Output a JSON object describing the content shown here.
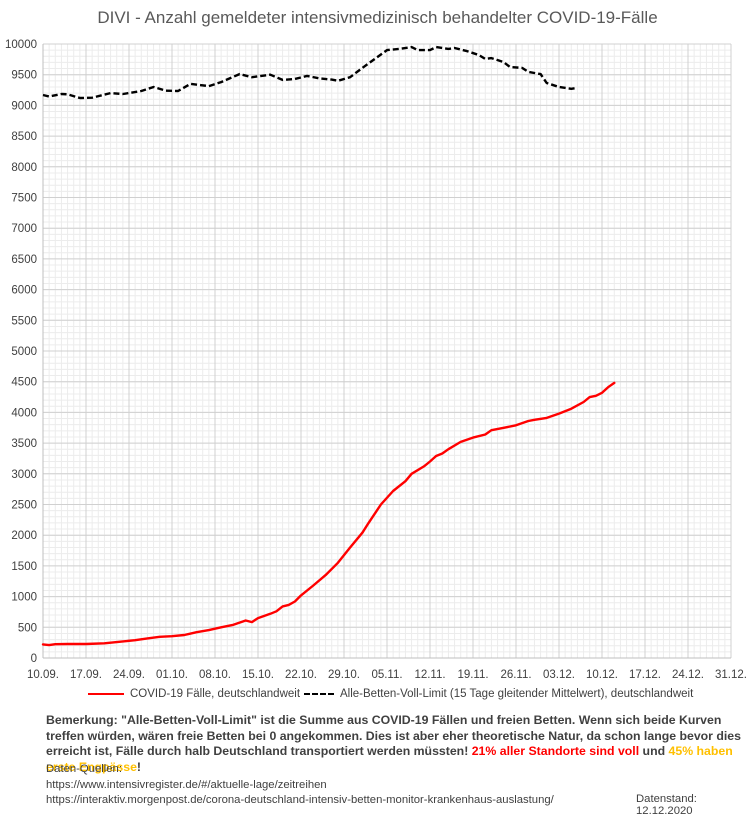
{
  "chart_data": {
    "type": "line",
    "title": "DIVI - Anzahl gemeldeter intensivmedizinisch behandelter COVID-19-Fälle",
    "xlabel": "",
    "ylabel": "",
    "x_unit": "days since 10.09.2020",
    "xlim": [
      0,
      112
    ],
    "ylim": [
      0,
      10000
    ],
    "grid": true,
    "legend_position": "bottom",
    "y_ticks": [
      0,
      500,
      1000,
      1500,
      2000,
      2500,
      3000,
      3500,
      4000,
      4500,
      5000,
      5500,
      6000,
      6500,
      7000,
      7500,
      8000,
      8500,
      9000,
      9500,
      10000
    ],
    "x_tick_values": [
      0,
      7,
      14,
      21,
      28,
      35,
      42,
      49,
      56,
      63,
      70,
      77,
      84,
      91,
      98,
      105,
      112
    ],
    "x_tick_labels": [
      "10.09.",
      "17.09.",
      "24.09.",
      "01.10.",
      "08.10.",
      "15.10.",
      "22.10.",
      "29.10.",
      "05.11.",
      "12.11.",
      "19.11.",
      "26.11.",
      "03.12.",
      "10.12.",
      "17.12.",
      "24.12.",
      "31.12."
    ],
    "series": [
      {
        "name": "COVID-19 Fälle, deutschlandweit",
        "color": "#ff0000",
        "style": "solid",
        "x": [
          0,
          1,
          2,
          4,
          7,
          10,
          13,
          15,
          17,
          19,
          21,
          23,
          25,
          27,
          29,
          31,
          33,
          34,
          35,
          37,
          38,
          39,
          40,
          41,
          42,
          44,
          46,
          48,
          50,
          52,
          53,
          55,
          57,
          59,
          60,
          62,
          63,
          64,
          65,
          66,
          68,
          70,
          72,
          73,
          75,
          77,
          79,
          80,
          82,
          84,
          86,
          88,
          89,
          90,
          91,
          92,
          93
        ],
        "values": [
          222,
          210,
          225,
          228,
          228,
          240,
          270,
          290,
          320,
          345,
          355,
          375,
          420,
          455,
          500,
          540,
          610,
          585,
          650,
          720,
          760,
          840,
          865,
          920,
          1020,
          1180,
          1350,
          1550,
          1800,
          2040,
          2200,
          2500,
          2720,
          2880,
          3000,
          3120,
          3200,
          3290,
          3330,
          3400,
          3520,
          3590,
          3640,
          3710,
          3750,
          3790,
          3860,
          3880,
          3910,
          3980,
          4060,
          4170,
          4250,
          4270,
          4320,
          4410,
          4480
        ]
      },
      {
        "name": "Alle-Betten-Voll-Limit (15 Tage gleitender Mittelwert), deutschlandweit",
        "color": "#000000",
        "style": "dashed",
        "x": [
          0,
          1,
          3,
          4,
          6,
          8,
          11,
          13,
          16,
          18,
          20,
          22,
          24,
          27,
          29,
          32,
          34,
          37,
          39,
          41,
          43,
          45,
          47,
          48,
          50,
          52,
          54,
          56,
          58,
          60,
          61,
          63,
          64,
          66,
          67,
          69,
          71,
          72,
          73,
          75,
          76,
          78,
          79,
          81,
          82,
          84,
          86,
          87
        ],
        "values": [
          9170,
          9145,
          9185,
          9180,
          9120,
          9125,
          9200,
          9185,
          9235,
          9300,
          9240,
          9235,
          9350,
          9315,
          9380,
          9510,
          9460,
          9500,
          9415,
          9430,
          9480,
          9440,
          9420,
          9400,
          9460,
          9610,
          9755,
          9900,
          9920,
          9950,
          9900,
          9900,
          9950,
          9920,
          9935,
          9885,
          9820,
          9755,
          9770,
          9705,
          9625,
          9610,
          9545,
          9510,
          9365,
          9300,
          9270,
          9285
        ]
      }
    ]
  },
  "legend": {
    "covid_label": "COVID-19 Fälle, deutschlandweit",
    "limit_label": "Alle-Betten-Voll-Limit (15 Tage gleitender Mittelwert), deutschlandweit"
  },
  "remark": {
    "text": "Bemerkung: \"Alle-Betten-Voll-Limit\" ist die Summe aus COVID-19 Fällen und freien Betten. Wenn sich beide Kurven treffen würden, wären freie Betten bei 0 angekommen. Dies ist aber eher theoretische Natur, da schon lange bevor dies erreicht ist, Fälle durch halb Deutschland transportiert werden müssten! ",
    "red_text": "21% aller Standorte sind voll",
    "middle_text": " und ",
    "orange_text": "45% haben erste Engpässe",
    "end_text": "!",
    "red_color": "#ff0000",
    "orange_color": "#ffc000"
  },
  "sources": {
    "heading": "Daten-Quellen:",
    "url1": "https://www.intensivregister.de/#/aktuelle-lage/zeitreihen",
    "url2": "https://interaktiv.morgenpost.de/corona-deutschland-intensiv-betten-monitor-krankenhaus-auslastung/"
  },
  "datenstand": "Datenstand: 12.12.2020"
}
